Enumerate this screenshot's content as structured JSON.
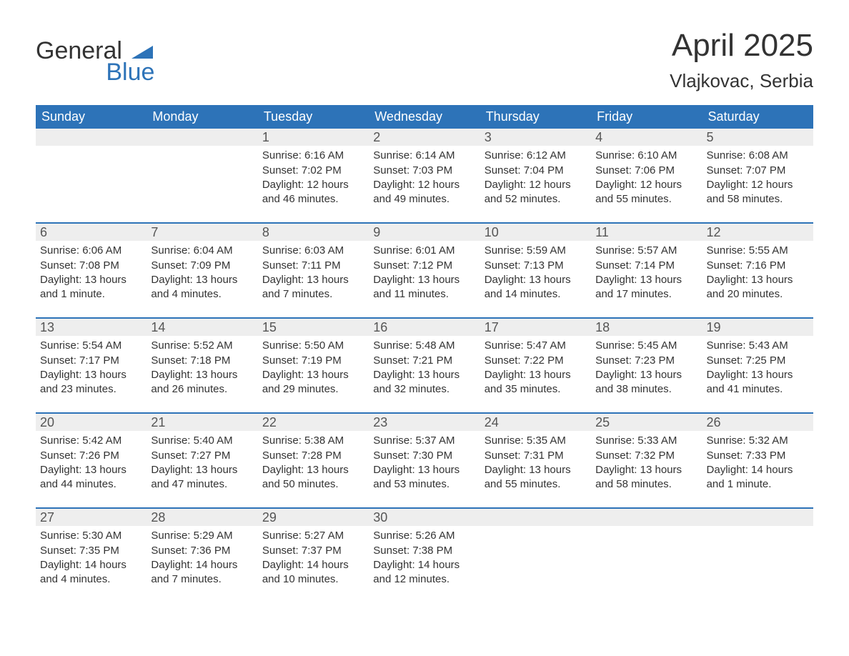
{
  "brand": {
    "word1": "General",
    "word2": "Blue",
    "primary_color": "#2d73b8",
    "text_color": "#333333"
  },
  "header": {
    "title": "April 2025",
    "location": "Vlajkovac, Serbia"
  },
  "colors": {
    "header_bg": "#2d73b8",
    "header_text": "#ffffff",
    "daynum_bg": "#eeeeee",
    "row_border": "#2d73b8",
    "body_bg": "#ffffff"
  },
  "weekdays": [
    "Sunday",
    "Monday",
    "Tuesday",
    "Wednesday",
    "Thursday",
    "Friday",
    "Saturday"
  ],
  "weeks": [
    [
      {
        "day": "",
        "sunrise": "",
        "sunset": "",
        "daylight": ""
      },
      {
        "day": "",
        "sunrise": "",
        "sunset": "",
        "daylight": ""
      },
      {
        "day": "1",
        "sunrise": "Sunrise: 6:16 AM",
        "sunset": "Sunset: 7:02 PM",
        "daylight": "Daylight: 12 hours and 46 minutes."
      },
      {
        "day": "2",
        "sunrise": "Sunrise: 6:14 AM",
        "sunset": "Sunset: 7:03 PM",
        "daylight": "Daylight: 12 hours and 49 minutes."
      },
      {
        "day": "3",
        "sunrise": "Sunrise: 6:12 AM",
        "sunset": "Sunset: 7:04 PM",
        "daylight": "Daylight: 12 hours and 52 minutes."
      },
      {
        "day": "4",
        "sunrise": "Sunrise: 6:10 AM",
        "sunset": "Sunset: 7:06 PM",
        "daylight": "Daylight: 12 hours and 55 minutes."
      },
      {
        "day": "5",
        "sunrise": "Sunrise: 6:08 AM",
        "sunset": "Sunset: 7:07 PM",
        "daylight": "Daylight: 12 hours and 58 minutes."
      }
    ],
    [
      {
        "day": "6",
        "sunrise": "Sunrise: 6:06 AM",
        "sunset": "Sunset: 7:08 PM",
        "daylight": "Daylight: 13 hours and 1 minute."
      },
      {
        "day": "7",
        "sunrise": "Sunrise: 6:04 AM",
        "sunset": "Sunset: 7:09 PM",
        "daylight": "Daylight: 13 hours and 4 minutes."
      },
      {
        "day": "8",
        "sunrise": "Sunrise: 6:03 AM",
        "sunset": "Sunset: 7:11 PM",
        "daylight": "Daylight: 13 hours and 7 minutes."
      },
      {
        "day": "9",
        "sunrise": "Sunrise: 6:01 AM",
        "sunset": "Sunset: 7:12 PM",
        "daylight": "Daylight: 13 hours and 11 minutes."
      },
      {
        "day": "10",
        "sunrise": "Sunrise: 5:59 AM",
        "sunset": "Sunset: 7:13 PM",
        "daylight": "Daylight: 13 hours and 14 minutes."
      },
      {
        "day": "11",
        "sunrise": "Sunrise: 5:57 AM",
        "sunset": "Sunset: 7:14 PM",
        "daylight": "Daylight: 13 hours and 17 minutes."
      },
      {
        "day": "12",
        "sunrise": "Sunrise: 5:55 AM",
        "sunset": "Sunset: 7:16 PM",
        "daylight": "Daylight: 13 hours and 20 minutes."
      }
    ],
    [
      {
        "day": "13",
        "sunrise": "Sunrise: 5:54 AM",
        "sunset": "Sunset: 7:17 PM",
        "daylight": "Daylight: 13 hours and 23 minutes."
      },
      {
        "day": "14",
        "sunrise": "Sunrise: 5:52 AM",
        "sunset": "Sunset: 7:18 PM",
        "daylight": "Daylight: 13 hours and 26 minutes."
      },
      {
        "day": "15",
        "sunrise": "Sunrise: 5:50 AM",
        "sunset": "Sunset: 7:19 PM",
        "daylight": "Daylight: 13 hours and 29 minutes."
      },
      {
        "day": "16",
        "sunrise": "Sunrise: 5:48 AM",
        "sunset": "Sunset: 7:21 PM",
        "daylight": "Daylight: 13 hours and 32 minutes."
      },
      {
        "day": "17",
        "sunrise": "Sunrise: 5:47 AM",
        "sunset": "Sunset: 7:22 PM",
        "daylight": "Daylight: 13 hours and 35 minutes."
      },
      {
        "day": "18",
        "sunrise": "Sunrise: 5:45 AM",
        "sunset": "Sunset: 7:23 PM",
        "daylight": "Daylight: 13 hours and 38 minutes."
      },
      {
        "day": "19",
        "sunrise": "Sunrise: 5:43 AM",
        "sunset": "Sunset: 7:25 PM",
        "daylight": "Daylight: 13 hours and 41 minutes."
      }
    ],
    [
      {
        "day": "20",
        "sunrise": "Sunrise: 5:42 AM",
        "sunset": "Sunset: 7:26 PM",
        "daylight": "Daylight: 13 hours and 44 minutes."
      },
      {
        "day": "21",
        "sunrise": "Sunrise: 5:40 AM",
        "sunset": "Sunset: 7:27 PM",
        "daylight": "Daylight: 13 hours and 47 minutes."
      },
      {
        "day": "22",
        "sunrise": "Sunrise: 5:38 AM",
        "sunset": "Sunset: 7:28 PM",
        "daylight": "Daylight: 13 hours and 50 minutes."
      },
      {
        "day": "23",
        "sunrise": "Sunrise: 5:37 AM",
        "sunset": "Sunset: 7:30 PM",
        "daylight": "Daylight: 13 hours and 53 minutes."
      },
      {
        "day": "24",
        "sunrise": "Sunrise: 5:35 AM",
        "sunset": "Sunset: 7:31 PM",
        "daylight": "Daylight: 13 hours and 55 minutes."
      },
      {
        "day": "25",
        "sunrise": "Sunrise: 5:33 AM",
        "sunset": "Sunset: 7:32 PM",
        "daylight": "Daylight: 13 hours and 58 minutes."
      },
      {
        "day": "26",
        "sunrise": "Sunrise: 5:32 AM",
        "sunset": "Sunset: 7:33 PM",
        "daylight": "Daylight: 14 hours and 1 minute."
      }
    ],
    [
      {
        "day": "27",
        "sunrise": "Sunrise: 5:30 AM",
        "sunset": "Sunset: 7:35 PM",
        "daylight": "Daylight: 14 hours and 4 minutes."
      },
      {
        "day": "28",
        "sunrise": "Sunrise: 5:29 AM",
        "sunset": "Sunset: 7:36 PM",
        "daylight": "Daylight: 14 hours and 7 minutes."
      },
      {
        "day": "29",
        "sunrise": "Sunrise: 5:27 AM",
        "sunset": "Sunset: 7:37 PM",
        "daylight": "Daylight: 14 hours and 10 minutes."
      },
      {
        "day": "30",
        "sunrise": "Sunrise: 5:26 AM",
        "sunset": "Sunset: 7:38 PM",
        "daylight": "Daylight: 14 hours and 12 minutes."
      },
      {
        "day": "",
        "sunrise": "",
        "sunset": "",
        "daylight": ""
      },
      {
        "day": "",
        "sunrise": "",
        "sunset": "",
        "daylight": ""
      },
      {
        "day": "",
        "sunrise": "",
        "sunset": "",
        "daylight": ""
      }
    ]
  ]
}
